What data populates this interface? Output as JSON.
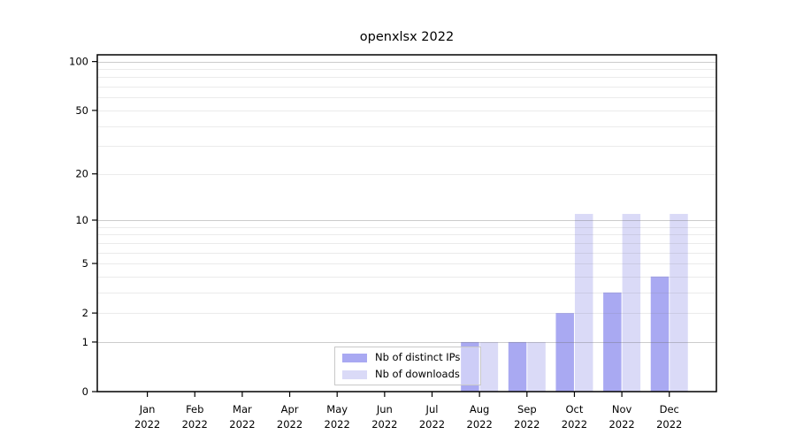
{
  "chart_data": {
    "type": "bar",
    "title": "openxlsx 2022",
    "categories": [
      "Jan",
      "Feb",
      "Mar",
      "Apr",
      "May",
      "Jun",
      "Jul",
      "Aug",
      "Sep",
      "Oct",
      "Nov",
      "Dec"
    ],
    "x_year_label": "2022",
    "series": [
      {
        "name": "Nb of distinct IPs",
        "color": "#a9a9f2",
        "values": [
          0,
          0,
          0,
          0,
          0,
          0,
          0,
          1,
          1,
          2,
          3,
          4
        ]
      },
      {
        "name": "Nb of downloads",
        "color": "#dadaf7",
        "values": [
          0,
          0,
          0,
          0,
          0,
          0,
          0,
          1,
          1,
          11,
          11,
          11
        ]
      }
    ],
    "y_scale": "log1p",
    "y_ticks": [
      100,
      50,
      20,
      10,
      5,
      2,
      1,
      0
    ],
    "y_major_grid": [
      1,
      10,
      100
    ],
    "y_minor_grid": [
      2,
      3,
      4,
      5,
      6,
      7,
      8,
      9,
      20,
      30,
      40,
      50,
      60,
      70,
      80,
      90
    ],
    "ylim": [
      0,
      110
    ],
    "grid": true,
    "legend_position": "inside-bottom-center",
    "axis_color": "#000000",
    "major_grid_color": "#cccccc",
    "minor_grid_color": "#ececec"
  }
}
